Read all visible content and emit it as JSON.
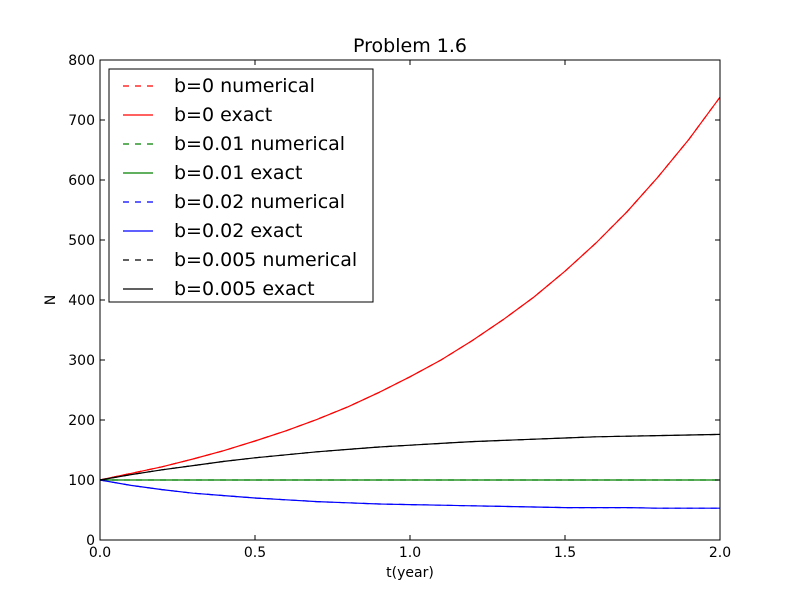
{
  "chart_data": {
    "type": "line",
    "title": "Problem 1.6",
    "xlabel": "t(year)",
    "ylabel": "N",
    "xlim": [
      0.0,
      2.0
    ],
    "ylim": [
      0,
      800
    ],
    "xticks": [
      "0.0",
      "0.5",
      "1.0",
      "1.5",
      "2.0"
    ],
    "yticks": [
      "0",
      "100",
      "200",
      "300",
      "400",
      "500",
      "600",
      "700",
      "800"
    ],
    "grid": false,
    "legend_position": "top-left",
    "x": [
      0.0,
      0.1,
      0.2,
      0.3,
      0.4,
      0.5,
      0.6,
      0.7,
      0.8,
      0.9,
      1.0,
      1.1,
      1.2,
      1.3,
      1.4,
      1.5,
      1.6,
      1.7,
      1.8,
      1.9,
      2.0
    ],
    "series": [
      {
        "name": "b=0 numerical",
        "color": "#ff0000",
        "style": "dashed",
        "values": [
          100,
          111,
          122,
          135,
          149,
          165,
          182,
          201,
          222,
          246,
          272,
          300,
          332,
          367,
          405,
          448,
          495,
          547,
          605,
          668,
          738
        ]
      },
      {
        "name": "b=0 exact",
        "color": "#ff0000",
        "style": "solid",
        "values": [
          100,
          111,
          122,
          135,
          149,
          165,
          182,
          201,
          222,
          246,
          272,
          300,
          332,
          367,
          405,
          448,
          495,
          547,
          605,
          668,
          738
        ]
      },
      {
        "name": "b=0.01 numerical",
        "color": "#008000",
        "style": "dashed",
        "values": [
          100,
          100,
          100,
          100,
          100,
          100,
          100,
          100,
          100,
          100,
          100,
          100,
          100,
          100,
          100,
          100,
          100,
          100,
          100,
          100,
          100
        ]
      },
      {
        "name": "b=0.01 exact",
        "color": "#008000",
        "style": "solid",
        "values": [
          100,
          100,
          100,
          100,
          100,
          100,
          100,
          100,
          100,
          100,
          100,
          100,
          100,
          100,
          100,
          100,
          100,
          100,
          100,
          100,
          100
        ]
      },
      {
        "name": "b=0.02 numerical",
        "color": "#0000ff",
        "style": "dashed",
        "values": [
          100,
          91,
          84,
          78,
          74,
          70,
          67,
          64,
          62,
          60,
          59,
          58,
          57,
          56,
          55,
          54,
          54,
          54,
          53,
          53,
          53
        ]
      },
      {
        "name": "b=0.02 exact",
        "color": "#0000ff",
        "style": "solid",
        "values": [
          100,
          91,
          84,
          78,
          74,
          70,
          67,
          64,
          62,
          60,
          59,
          58,
          57,
          56,
          55,
          54,
          54,
          54,
          53,
          53,
          53
        ]
      },
      {
        "name": "b=0.005 numerical",
        "color": "#000000",
        "style": "dashed",
        "values": [
          100,
          109,
          117,
          124,
          131,
          137,
          142,
          147,
          151,
          155,
          158,
          161,
          164,
          166,
          168,
          170,
          172,
          173,
          174,
          175,
          176
        ]
      },
      {
        "name": "b=0.005 exact",
        "color": "#000000",
        "style": "solid",
        "values": [
          100,
          109,
          117,
          124,
          131,
          137,
          142,
          147,
          151,
          155,
          158,
          161,
          164,
          166,
          168,
          170,
          172,
          173,
          174,
          175,
          176
        ]
      }
    ]
  }
}
